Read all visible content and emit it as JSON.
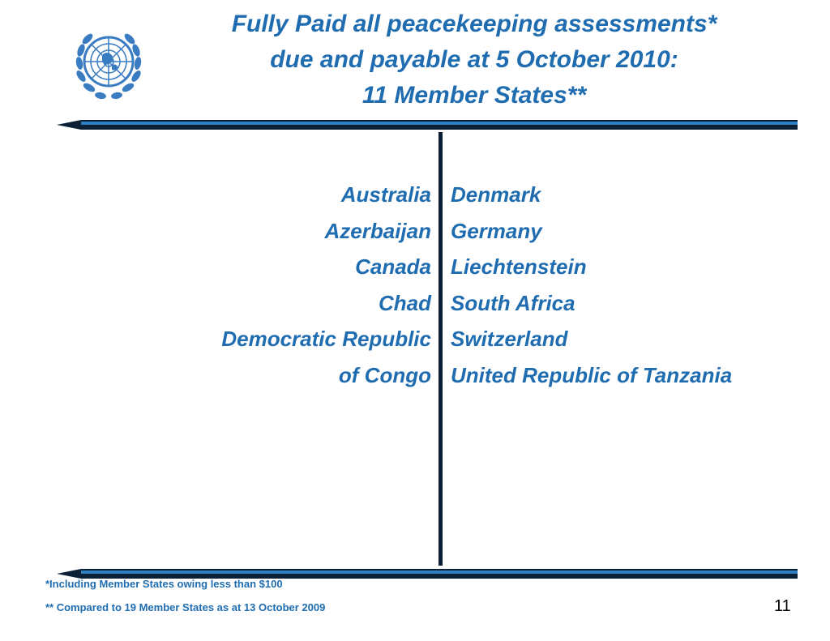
{
  "title": {
    "line1": "Fully Paid all peacekeeping assessments*",
    "line2": "due and payable at 5 October 2010:",
    "line3": "11 Member States**"
  },
  "left_column": [
    "Australia",
    "Azerbaijan",
    "Canada",
    "Chad",
    "Democratic Republic",
    "of Congo"
  ],
  "right_column": [
    "Denmark",
    "Germany",
    "Liechtenstein",
    "South Africa",
    "Switzerland",
    "United Republic of Tanzania"
  ],
  "footnotes": {
    "note1": "*Including Member States owing less than $100",
    "note2": "** Compared to 19 Member States as at 13 October 2009"
  },
  "page_number": "11",
  "colors": {
    "text_blue": "#1f6db0",
    "rule_dark": "#0b1f35",
    "rule_light": "#2f7fc0",
    "emblem_blue": "#3a7cc2"
  },
  "icons": {
    "logo": "un-emblem-icon"
  }
}
